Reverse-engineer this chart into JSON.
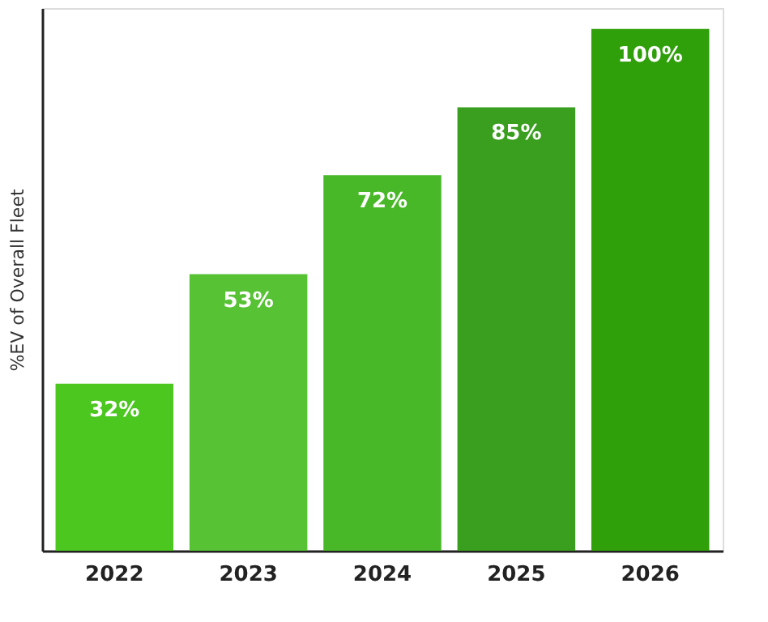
{
  "chart_data": {
    "type": "bar",
    "ylabel": "%EV of Overall Fleet",
    "categories": [
      "2022",
      "2023",
      "2024",
      "2025",
      "2026"
    ],
    "values": [
      32,
      53,
      72,
      85,
      100
    ],
    "colors": [
      "#4cc720",
      "#56c234",
      "#49b828",
      "#3a9e1e",
      "#2f9f0a"
    ],
    "value_labels": [
      "32%",
      "53%",
      "72%",
      "85%",
      "100%"
    ],
    "grid": false,
    "legend": false
  }
}
